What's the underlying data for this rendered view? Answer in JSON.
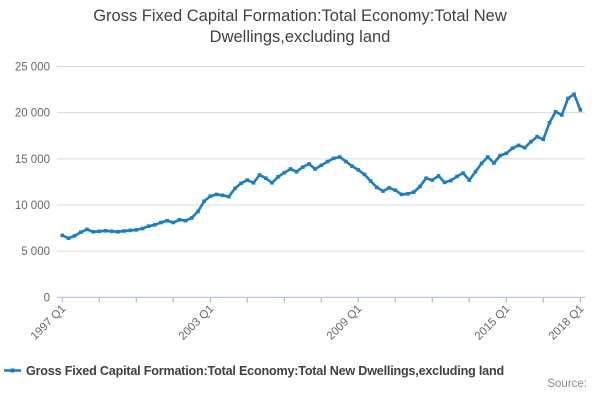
{
  "title": "Gross Fixed Capital Formation:Total Economy:Total New Dwellings,excluding land",
  "source_label": "Source:",
  "legend": {
    "label": "Gross Fixed Capital Formation:Total Economy:Total New Dwellings,excluding land"
  },
  "colors": {
    "line": "#1e7dbe",
    "grid": "#d9d9d9",
    "axis": "#aec1dc",
    "tick_text": "#666666",
    "title_text": "#414042"
  },
  "chart_data": {
    "type": "line",
    "title": "Gross Fixed Capital Formation:Total Economy:Total New Dwellings,excluding land",
    "xlabel": "",
    "ylabel": "",
    "x_start": "1997 Q1",
    "x_end": "2018 Q1",
    "frequency": "quarterly",
    "ylim": [
      0,
      25000
    ],
    "y_tick_labels": [
      "25 000",
      "20 000",
      "15 000",
      "10 000",
      "5 000",
      "0"
    ],
    "x_tick_labels": [
      "1997 Q1",
      "2003 Q1",
      "2009 Q1",
      "2015 Q1",
      "2018 Q1"
    ],
    "x_tick_step_quarters": 6,
    "x_labeled_tick_indices": [
      0,
      4,
      8,
      12,
      14
    ],
    "grid": "horizontal",
    "legend_position": "bottom-left",
    "series": [
      {
        "name": "Gross Fixed Capital Formation:Total Economy:Total New Dwellings,excluding land",
        "values": [
          6700,
          6400,
          6650,
          7050,
          7350,
          7100,
          7150,
          7200,
          7150,
          7100,
          7180,
          7250,
          7300,
          7450,
          7700,
          7850,
          8100,
          8300,
          8100,
          8400,
          8300,
          8600,
          9300,
          10400,
          10950,
          11150,
          11050,
          10900,
          11800,
          12350,
          12700,
          12400,
          13250,
          12900,
          12400,
          13050,
          13500,
          13900,
          13600,
          14100,
          14450,
          13900,
          14300,
          14700,
          15050,
          15200,
          14700,
          14200,
          13800,
          13300,
          12600,
          11900,
          11500,
          11850,
          11600,
          11150,
          11200,
          11400,
          12000,
          12900,
          12700,
          13150,
          12450,
          12650,
          13100,
          13450,
          12700,
          13600,
          14500,
          15200,
          14550,
          15350,
          15600,
          16150,
          16450,
          16200,
          16850,
          17400,
          17100,
          18900,
          20100,
          19750,
          21550,
          22000,
          20300
        ]
      }
    ]
  }
}
